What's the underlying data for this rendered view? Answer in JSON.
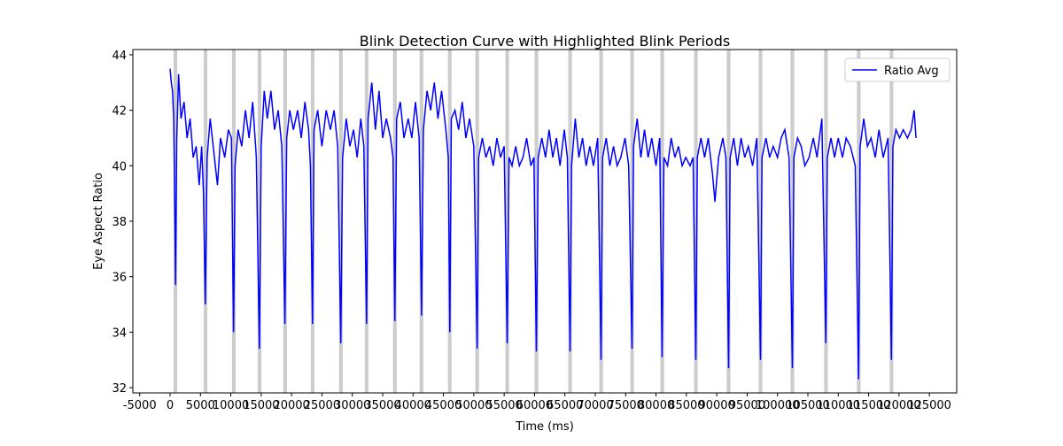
{
  "chart_data": {
    "type": "line",
    "title": "Blink Detection Curve with Highlighted Blink Periods",
    "x_label": "Time (ms)",
    "y_label": "Eye Aspect Ratio",
    "xlim": [
      -6125,
      129500
    ],
    "ylim": [
      31.81,
      44.19
    ],
    "xticks": [
      -5000,
      0,
      5000,
      10000,
      15000,
      20000,
      25000,
      30000,
      35000,
      40000,
      45000,
      50000,
      55000,
      60000,
      65000,
      70000,
      75000,
      80000,
      85000,
      90000,
      95000,
      100000,
      105000,
      110000,
      115000,
      120000,
      125000
    ],
    "yticks": [
      32,
      34,
      36,
      38,
      40,
      42,
      44
    ],
    "legend_position": "upper right",
    "highlight_color": "#cccccc",
    "highlight_spans": [
      [
        575,
        1175
      ],
      [
        5530,
        6130
      ],
      [
        10190,
        10790
      ],
      [
        14420,
        15020
      ],
      [
        18640,
        19240
      ],
      [
        23160,
        23760
      ],
      [
        27820,
        28420
      ],
      [
        32050,
        32650
      ],
      [
        36710,
        37310
      ],
      [
        41080,
        41680
      ],
      [
        45740,
        46340
      ],
      [
        50260,
        50860
      ],
      [
        55210,
        55810
      ],
      [
        60020,
        60620
      ],
      [
        65560,
        66160
      ],
      [
        70660,
        71260
      ],
      [
        75760,
        76360
      ],
      [
        80720,
        81320
      ],
      [
        86260,
        86860
      ],
      [
        91650,
        92250
      ],
      [
        96900,
        97500
      ],
      [
        102150,
        102750
      ],
      [
        107680,
        108280
      ],
      [
        113070,
        113670
      ],
      [
        118460,
        119060
      ]
    ],
    "series": [
      {
        "name": "Ratio Avg",
        "color": "#0000ff",
        "x": [
          0,
          200,
          400,
          600,
          800,
          900,
          1100,
          1400,
          1800,
          2300,
          2800,
          3300,
          3800,
          4300,
          4800,
          5200,
          5500,
          5800,
          6100,
          6600,
          7100,
          7800,
          8300,
          9000,
          9600,
          10100,
          10450,
          10700,
          11200,
          11800,
          12400,
          13000,
          13600,
          14200,
          14700,
          15000,
          15500,
          16000,
          16600,
          17200,
          17800,
          18400,
          18900,
          19200,
          19700,
          20300,
          21000,
          21600,
          22200,
          22800,
          23100,
          23450,
          23700,
          24300,
          25000,
          25700,
          26400,
          27000,
          27600,
          28100,
          28400,
          29000,
          29600,
          30200,
          30800,
          31400,
          31900,
          32350,
          32600,
          33200,
          33800,
          34400,
          35000,
          35600,
          36300,
          36700,
          37000,
          37300,
          37900,
          38500,
          39200,
          39800,
          40400,
          41000,
          41400,
          41700,
          42300,
          42900,
          43500,
          44100,
          44700,
          45400,
          45800,
          46050,
          46300,
          46900,
          47500,
          48100,
          48700,
          49300,
          50000,
          50550,
          50800,
          51400,
          52000,
          52600,
          53200,
          53800,
          54400,
          55000,
          55500,
          55800,
          56300,
          56900,
          57500,
          58100,
          58700,
          59400,
          59900,
          60300,
          60600,
          61200,
          61800,
          62400,
          63000,
          63600,
          64200,
          64900,
          65400,
          65850,
          66100,
          66700,
          67300,
          67900,
          68500,
          69100,
          69700,
          70400,
          70950,
          71200,
          71800,
          72400,
          73000,
          73600,
          74200,
          74900,
          75500,
          76050,
          76300,
          76900,
          77500,
          78100,
          78700,
          79300,
          80000,
          80600,
          81000,
          81300,
          81900,
          82500,
          83100,
          83700,
          84300,
          84900,
          85600,
          86100,
          86550,
          86800,
          87400,
          88000,
          88600,
          89300,
          89700,
          90300,
          91000,
          91500,
          91950,
          92200,
          92800,
          93400,
          94000,
          94600,
          95200,
          95900,
          96600,
          97200,
          97450,
          98100,
          98700,
          99300,
          100000,
          100600,
          101200,
          101900,
          102450,
          102700,
          103300,
          103900,
          104500,
          105200,
          105900,
          106500,
          107300,
          107950,
          108200,
          108800,
          109400,
          110000,
          110700,
          111300,
          112000,
          112800,
          113350,
          113600,
          114200,
          114800,
          115400,
          116100,
          116700,
          117400,
          118200,
          118750,
          119000,
          119500,
          120100,
          120700,
          121400,
          122000,
          122500,
          122800
        ],
        "values": [
          43.5,
          43.0,
          42.7,
          41.7,
          38.0,
          35.7,
          41.0,
          43.3,
          41.7,
          42.3,
          41.0,
          41.7,
          40.3,
          40.7,
          39.3,
          40.7,
          39.0,
          35.0,
          40.3,
          41.7,
          40.7,
          39.3,
          41.0,
          40.3,
          41.3,
          41.0,
          34.0,
          40.0,
          41.3,
          40.7,
          42.0,
          41.0,
          42.3,
          40.3,
          33.4,
          40.7,
          42.7,
          41.7,
          42.7,
          41.3,
          42.0,
          40.7,
          34.3,
          41.0,
          42.0,
          41.3,
          42.0,
          41.0,
          42.3,
          41.3,
          40.0,
          34.3,
          41.3,
          42.0,
          40.7,
          42.0,
          41.3,
          42.0,
          40.7,
          33.6,
          40.3,
          41.7,
          40.7,
          41.3,
          40.3,
          41.7,
          40.7,
          34.3,
          41.7,
          43.0,
          41.3,
          42.7,
          41.0,
          41.7,
          41.0,
          40.3,
          34.4,
          41.7,
          42.3,
          41.0,
          41.7,
          41.0,
          42.3,
          41.0,
          34.6,
          41.3,
          42.7,
          42.0,
          43.0,
          41.7,
          42.7,
          41.3,
          40.3,
          34.0,
          41.7,
          42.0,
          41.3,
          42.3,
          41.0,
          41.7,
          40.7,
          33.4,
          40.3,
          41.0,
          40.3,
          40.7,
          40.0,
          41.0,
          40.3,
          40.7,
          33.6,
          40.3,
          40.0,
          40.7,
          40.0,
          40.3,
          41.0,
          40.0,
          40.3,
          33.3,
          40.3,
          41.0,
          40.3,
          41.3,
          40.3,
          41.0,
          40.0,
          41.3,
          40.3,
          33.3,
          40.0,
          41.7,
          40.3,
          41.0,
          40.0,
          40.7,
          40.0,
          41.0,
          33.0,
          40.3,
          41.0,
          40.0,
          40.7,
          40.0,
          40.3,
          41.0,
          40.0,
          33.4,
          40.7,
          41.7,
          40.3,
          41.3,
          40.3,
          41.0,
          40.0,
          41.0,
          33.1,
          40.3,
          40.0,
          41.0,
          40.3,
          40.7,
          40.0,
          40.3,
          40.0,
          40.3,
          33.0,
          40.3,
          41.0,
          40.3,
          41.0,
          39.7,
          38.7,
          40.3,
          41.0,
          40.3,
          32.7,
          40.3,
          41.0,
          40.0,
          41.0,
          40.3,
          40.7,
          40.0,
          41.0,
          33.0,
          40.3,
          41.0,
          40.3,
          40.7,
          40.3,
          41.0,
          41.3,
          40.3,
          32.7,
          40.3,
          41.0,
          40.7,
          40.0,
          40.3,
          41.0,
          40.3,
          41.7,
          33.6,
          40.3,
          41.0,
          40.3,
          41.0,
          40.3,
          41.0,
          40.7,
          40.0,
          32.3,
          40.7,
          41.7,
          40.7,
          41.0,
          40.3,
          41.3,
          40.3,
          41.0,
          33.0,
          40.7,
          41.3,
          41.0,
          41.3,
          41.0,
          41.3,
          42.0,
          41.0
        ]
      }
    ]
  }
}
